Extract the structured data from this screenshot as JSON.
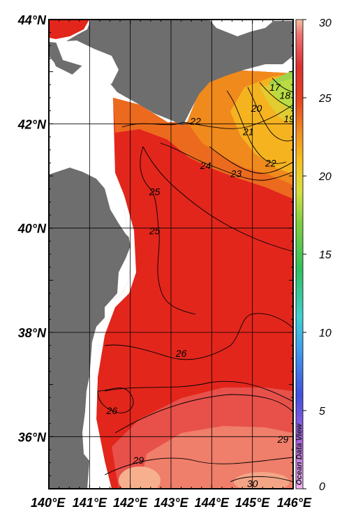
{
  "map": {
    "extent": {
      "lon_min": 140,
      "lon_max": 146,
      "lat_min": 35,
      "lat_max": 44
    },
    "lat_ticks": [
      {
        "value": 44,
        "label": "44°N"
      },
      {
        "value": 42,
        "label": "42°N"
      },
      {
        "value": 40,
        "label": "40°N"
      },
      {
        "value": 38,
        "label": "38°N"
      },
      {
        "value": 36,
        "label": "36°N"
      }
    ],
    "lon_ticks": [
      {
        "value": 140,
        "label": "140°E"
      },
      {
        "value": 141,
        "label": "141°E"
      },
      {
        "value": 142,
        "label": "142°E"
      },
      {
        "value": 143,
        "label": "143°E"
      },
      {
        "value": 144,
        "label": "144°E"
      },
      {
        "value": 145,
        "label": "145°E"
      },
      {
        "value": 146,
        "label": "146°E"
      }
    ],
    "contour_labels": [
      {
        "text": "22",
        "lon": 143.6,
        "lat": 42.05
      },
      {
        "text": "20",
        "lon": 145.1,
        "lat": 42.3
      },
      {
        "text": "21",
        "lon": 144.9,
        "lat": 41.85
      },
      {
        "text": "18",
        "lon": 145.8,
        "lat": 42.55
      },
      {
        "text": "17",
        "lon": 145.55,
        "lat": 42.7
      },
      {
        "text": "19",
        "lon": 145.9,
        "lat": 42.1
      },
      {
        "text": "24",
        "lon": 143.85,
        "lat": 41.2
      },
      {
        "text": "23",
        "lon": 144.6,
        "lat": 41.05
      },
      {
        "text": "22",
        "lon": 145.45,
        "lat": 41.25
      },
      {
        "text": "25",
        "lon": 142.6,
        "lat": 40.7
      },
      {
        "text": "25",
        "lon": 142.6,
        "lat": 39.95
      },
      {
        "text": "26",
        "lon": 143.25,
        "lat": 37.6
      },
      {
        "text": "26",
        "lon": 141.55,
        "lat": 36.5
      },
      {
        "text": "29",
        "lon": 145.75,
        "lat": 35.95
      },
      {
        "text": "29",
        "lon": 142.2,
        "lat": 35.55
      },
      {
        "text": "30",
        "lon": 145.0,
        "lat": 35.1
      }
    ],
    "colors": {
      "land": "#6e6e6e",
      "nodata": "#ffffff",
      "sea_main": "#e2261c",
      "sea_warm": "#e85a4e",
      "sea_hot": "#f2a080",
      "sea_cool_orange": "#f08a1c",
      "sea_yellow": "#f5c020",
      "sea_green": "#8ad24a"
    }
  },
  "colorbar": {
    "min": 0,
    "max": 30,
    "ticks": [
      {
        "value": 30,
        "label": "30"
      },
      {
        "value": 25,
        "label": "25"
      },
      {
        "value": 20,
        "label": "20"
      },
      {
        "value": 15,
        "label": "15"
      },
      {
        "value": 10,
        "label": "10"
      },
      {
        "value": 5,
        "label": "5"
      },
      {
        "value": 0,
        "label": "0"
      }
    ],
    "stops": [
      {
        "value": 0,
        "color": "#f4b6f4"
      },
      {
        "value": 3,
        "color": "#b060e0"
      },
      {
        "value": 6,
        "color": "#4050e0"
      },
      {
        "value": 9,
        "color": "#40a0f0"
      },
      {
        "value": 11,
        "color": "#40d0d0"
      },
      {
        "value": 14,
        "color": "#30c060"
      },
      {
        "value": 17,
        "color": "#80d040"
      },
      {
        "value": 19,
        "color": "#d8e040"
      },
      {
        "value": 21,
        "color": "#f8c020"
      },
      {
        "value": 23,
        "color": "#f08820"
      },
      {
        "value": 25,
        "color": "#e84020"
      },
      {
        "value": 27,
        "color": "#e03030"
      },
      {
        "value": 29,
        "color": "#f07070"
      },
      {
        "value": 30,
        "color": "#f8c0a0"
      }
    ]
  },
  "credit": "Ocean Data View"
}
